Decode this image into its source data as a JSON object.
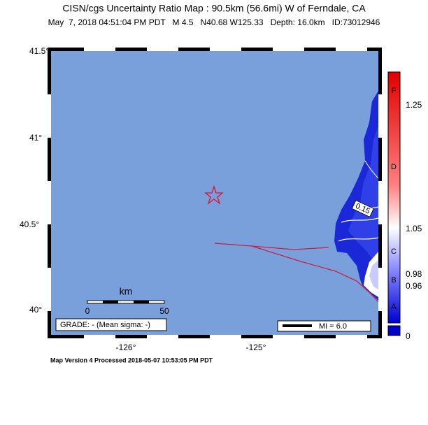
{
  "header": {
    "title": "CISN/cgs Uncertainty Ratio Map : 90.5km (56.6mi) W of Ferndale, CA",
    "subtitle": "May  7, 2018 04:51:04 PM PDT   M 4.5   N40.68 W125.33   Depth: 16.0km   ID:73012946"
  },
  "map": {
    "lat_labels": [
      "41.5°",
      "41°",
      "40.5°",
      "40°"
    ],
    "lon_labels": [
      "-126°",
      "-125°"
    ],
    "contour_label": "0.15",
    "scale_bar": {
      "unit": "km",
      "labels": [
        "0",
        "50"
      ]
    },
    "grade": "GRADE: - (Mean sigma: -)",
    "legend": "MI = 6.0"
  },
  "colorbar": {
    "grades": [
      "F",
      "D",
      "C",
      "B",
      "A"
    ],
    "labels": [
      "1.25",
      "1.05",
      "0.98",
      "0.96",
      "0"
    ]
  },
  "footer": "Map Version 4 Processed 2018-05-07 10:53:05 PM PDT"
}
